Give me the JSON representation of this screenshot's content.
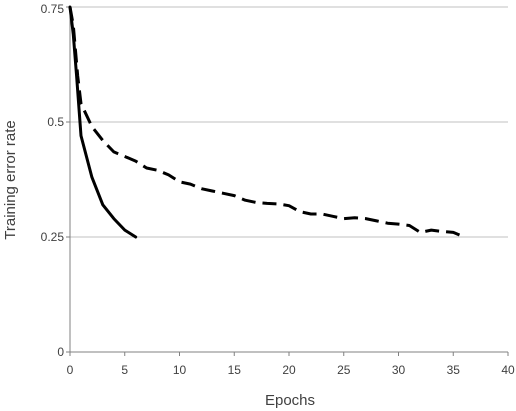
{
  "chart_data": {
    "type": "line",
    "xlabel": "Epochs",
    "ylabel": "Training error rate",
    "xlim": [
      0,
      40
    ],
    "ylim": [
      0,
      0.75
    ],
    "x_ticks": [
      0,
      5,
      10,
      15,
      20,
      25,
      30,
      35,
      40
    ],
    "y_ticks": [
      0,
      0.25,
      0.5,
      0.75
    ],
    "x_tick_labels": [
      "0",
      "5",
      "10",
      "15",
      "20",
      "25",
      "30",
      "35",
      "40"
    ],
    "y_tick_labels": [
      "0",
      "0.25",
      "0.5",
      "0.75"
    ],
    "grid": "horizontal",
    "legend": "none",
    "series": [
      {
        "style": "solid",
        "color": "#000000",
        "x": [
          0,
          0.3,
          0.6,
          1,
          2,
          3,
          4,
          5,
          6
        ],
        "y": [
          0.75,
          0.69,
          0.6,
          0.47,
          0.38,
          0.32,
          0.29,
          0.265,
          0.25
        ]
      },
      {
        "style": "dashed",
        "color": "#000000",
        "x": [
          0,
          0.3,
          0.7,
          1,
          2,
          3,
          4,
          5,
          6,
          7,
          8,
          9,
          10,
          11,
          12,
          13,
          14,
          15,
          16,
          17,
          18,
          19,
          20,
          21,
          22,
          23,
          24,
          25,
          26,
          27,
          28,
          29,
          30,
          31,
          32,
          33,
          34,
          35,
          36
        ],
        "y": [
          0.75,
          0.71,
          0.6,
          0.54,
          0.49,
          0.46,
          0.435,
          0.425,
          0.415,
          0.4,
          0.395,
          0.385,
          0.37,
          0.365,
          0.355,
          0.35,
          0.345,
          0.34,
          0.33,
          0.325,
          0.323,
          0.322,
          0.318,
          0.305,
          0.3,
          0.3,
          0.295,
          0.29,
          0.292,
          0.29,
          0.285,
          0.28,
          0.278,
          0.275,
          0.26,
          0.265,
          0.262,
          0.26,
          0.25
        ]
      }
    ]
  }
}
